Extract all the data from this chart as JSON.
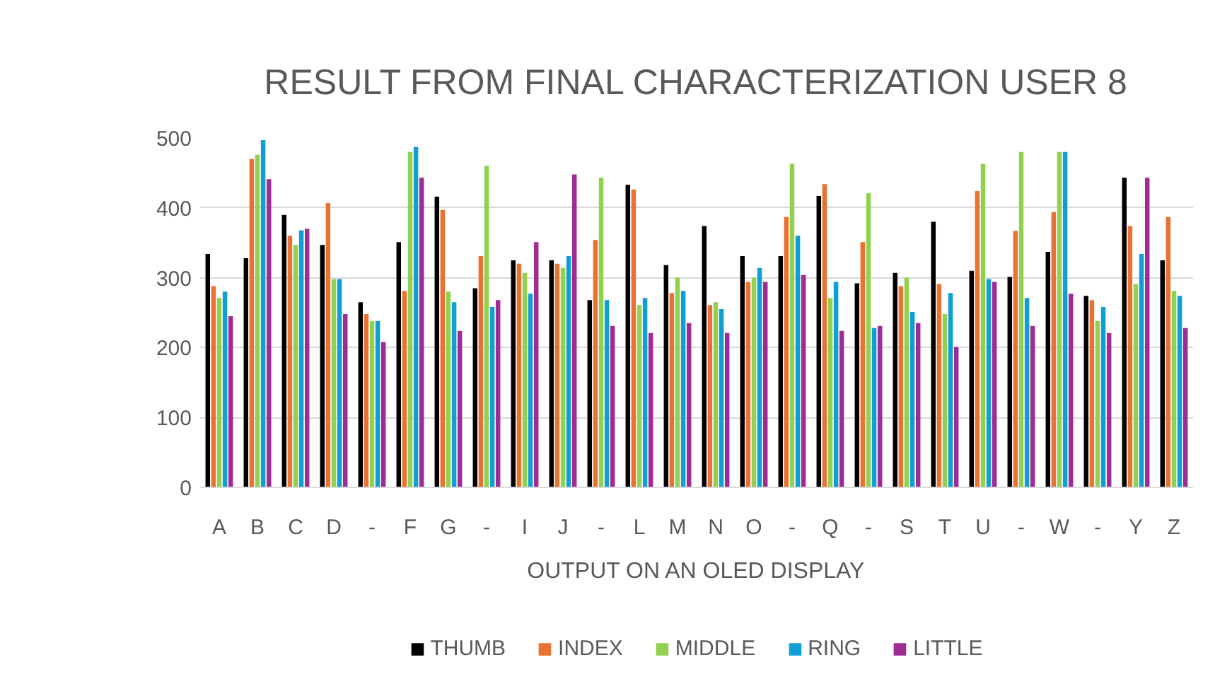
{
  "chart_data": {
    "type": "bar",
    "title": "RESULT FROM FINAL CHARACTERIZATION USER 8",
    "xlabel": "OUTPUT ON AN OLED DISPLAY",
    "categories": [
      "A",
      "B",
      "C",
      "D",
      "-",
      "F",
      "G",
      "-",
      "I",
      "J",
      "-",
      "L",
      "M",
      "N",
      "O",
      "-",
      "Q",
      "-",
      "S",
      "T",
      "U",
      "-",
      "W",
      "-",
      "Y",
      "Z"
    ],
    "series": [
      {
        "name": "THUMB",
        "color": "#000000",
        "values": [
          334,
          328,
          390,
          347,
          265,
          351,
          416,
          285,
          325,
          325,
          268,
          433,
          318,
          374,
          331,
          331,
          417,
          292,
          307,
          380,
          310,
          301,
          337,
          274,
          443,
          325
        ]
      },
      {
        "name": "INDEX",
        "color": "#e97132",
        "values": [
          288,
          470,
          360,
          407,
          248,
          281,
          397,
          331,
          320,
          320,
          354,
          426,
          278,
          261,
          294,
          387,
          434,
          351,
          288,
          291,
          424,
          367,
          394,
          268,
          374,
          387
        ]
      },
      {
        "name": "MIDDLE",
        "color": "#92d050",
        "values": [
          271,
          476,
          347,
          298,
          238,
          480,
          280,
          460,
          307,
          314,
          443,
          261,
          300,
          265,
          300,
          463,
          271,
          421,
          300,
          248,
          463,
          480,
          480,
          238,
          291,
          281
        ]
      },
      {
        "name": "RING",
        "color": "#0f9ed5",
        "values": [
          280,
          497,
          368,
          298,
          238,
          487,
          265,
          258,
          277,
          331,
          268,
          271,
          281,
          255,
          314,
          360,
          294,
          228,
          251,
          278,
          298,
          271,
          480,
          258,
          334,
          274
        ]
      },
      {
        "name": "LITTLE",
        "color": "#a02b93",
        "values": [
          245,
          441,
          370,
          248,
          208,
          443,
          224,
          268,
          351,
          448,
          231,
          221,
          235,
          221,
          294,
          304,
          224,
          231,
          235,
          201,
          294,
          231,
          277,
          221,
          443,
          228
        ]
      }
    ],
    "ylim": [
      0,
      500
    ],
    "yticks": [
      0,
      100,
      200,
      300,
      400,
      500
    ],
    "grid": "y",
    "legend": "bottom"
  }
}
